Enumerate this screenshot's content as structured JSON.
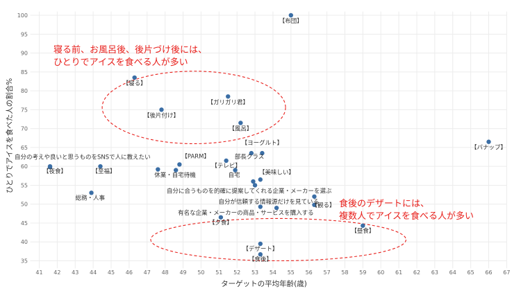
{
  "chart_data": {
    "type": "scatter",
    "xlabel": "ターゲットの平均年齢(歳)",
    "ylabel": "ひとりでアイスを食べた人の割合%",
    "xlim": [
      40.5,
      67
    ],
    "ylim": [
      33,
      101
    ],
    "x_ticks": [
      41,
      42,
      43,
      44,
      45,
      46,
      47,
      48,
      49,
      50,
      51,
      52,
      53,
      54,
      55,
      56,
      57,
      58,
      59,
      60,
      61,
      62,
      63,
      64,
      65,
      66,
      67
    ],
    "y_ticks": [
      35,
      40,
      45,
      50,
      55,
      60,
      65,
      70,
      75,
      80,
      85,
      90,
      95,
      100
    ],
    "grid": true,
    "marker_color": "#3b6ea5",
    "points": [
      {
        "label": "【布団】",
        "x": 55.0,
        "y": 100.0
      },
      {
        "label": "【寝る】",
        "x": 46.3,
        "y": 83.5
      },
      {
        "label": "【ガリガリ君】",
        "x": 51.5,
        "y": 78.5
      },
      {
        "label": "【後片付け】",
        "x": 47.8,
        "y": 75.0
      },
      {
        "label": "【風呂】",
        "x": 52.2,
        "y": 71.5
      },
      {
        "label": "【バナップ】",
        "x": 66.0,
        "y": 66.5
      },
      {
        "label": "【ヨーグルト】",
        "x": 53.4,
        "y": 63.5
      },
      {
        "label": "部長クラス",
        "x": 52.8,
        "y": 63.5
      },
      {
        "label": "【PARM】",
        "x": 48.8,
        "y": 60.5
      },
      {
        "label": "【テレビ】",
        "x": 51.4,
        "y": 61.5
      },
      {
        "label": "自分の考えや良いと思うものをSNSで人に教えたい",
        "x": 41.6,
        "y": 59.8
      },
      {
        "label": "【夜食】",
        "x": 41.6,
        "y": 60.0
      },
      {
        "label": "【至福】",
        "x": 44.4,
        "y": 60.0
      },
      {
        "label": "休業・自宅待機",
        "x": 48.6,
        "y": 59.0
      },
      {
        "label": "",
        "x": 47.6,
        "y": 59.2
      },
      {
        "label": "自宅",
        "x": 51.9,
        "y": 59.0
      },
      {
        "label": "【美味しい】",
        "x": 53.3,
        "y": 56.5
      },
      {
        "label": "",
        "x": 52.9,
        "y": 56.0
      },
      {
        "label": "自分に合うものを的確に提案してくれる企業・メーカーを選ぶ",
        "x": 53.0,
        "y": 55.0
      },
      {
        "label": "総務・人事",
        "x": 43.9,
        "y": 53.0
      },
      {
        "label": "自分が信頼する情報源だけを見ている",
        "x": 56.3,
        "y": 52.0
      },
      {
        "label": "【観る】",
        "x": 56.3,
        "y": 49.8
      },
      {
        "label": "有名な企業・メーカーの商品・サービスを購入する",
        "x": 54.2,
        "y": 49.0
      },
      {
        "label": "",
        "x": 53.3,
        "y": 49.3
      },
      {
        "label": "【夕食】",
        "x": 51.1,
        "y": 46.5
      },
      {
        "label": "【昼食】",
        "x": 59.0,
        "y": 44.3
      },
      {
        "label": "【デザート】",
        "x": 53.3,
        "y": 39.5
      },
      {
        "label": "【食後】",
        "x": 53.3,
        "y": 36.7
      }
    ],
    "annotations": [
      {
        "lines": [
          "寝る前、お風呂後、後片づけ後には、",
          "ひとりでアイスを食べる人が多い"
        ],
        "color": "#e8201c"
      },
      {
        "lines": [
          "食後のデザートには、",
          "複数人でアイスを食べる人が多い"
        ],
        "color": "#e8201c"
      }
    ],
    "highlight_ellipses": [
      {
        "cx": 49.6,
        "cy": 75.6,
        "rx": 5.1,
        "ry": 9.6
      },
      {
        "cx": 54.3,
        "cy": 40.6,
        "rx": 7.1,
        "ry": 5.6
      }
    ]
  }
}
